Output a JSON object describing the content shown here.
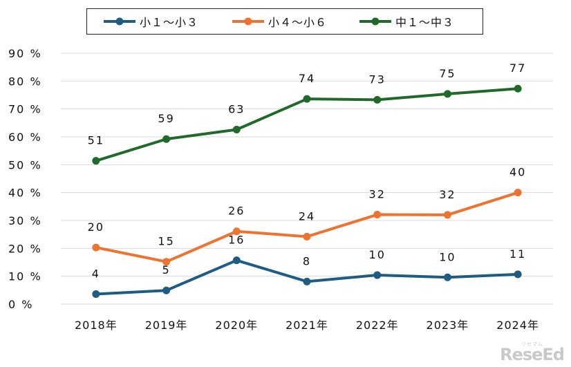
{
  "chart_data": {
    "type": "line",
    "categories": [
      "2018年",
      "2019年",
      "2020年",
      "2021年",
      "2022年",
      "2023年",
      "2024年"
    ],
    "series": [
      {
        "name": "小１～小３",
        "color": "#1f5c82",
        "values": [
          3.6,
          4.9,
          15.7,
          8.1,
          10.4,
          9.6,
          10.7
        ],
        "labels": [
          "4",
          "5",
          "16",
          "8",
          "10",
          "10",
          "11"
        ]
      },
      {
        "name": "小４～小６",
        "color": "#ec7430",
        "values": [
          20.3,
          15.2,
          26.1,
          24.2,
          32.1,
          32.0,
          40.0
        ],
        "labels": [
          "20",
          "15",
          "26",
          "24",
          "32",
          "32",
          "40"
        ]
      },
      {
        "name": "中１～中３",
        "color": "#21692a",
        "values": [
          51.4,
          59.2,
          62.6,
          73.6,
          73.3,
          75.4,
          77.3
        ],
        "labels": [
          "51",
          "59",
          "63",
          "74",
          "73",
          "75",
          "77"
        ]
      }
    ],
    "yticks": [
      "0 %",
      "10 %",
      "20 %",
      "30 %",
      "40 %",
      "50 %",
      "60 %",
      "70 %",
      "80 %",
      "90 %"
    ],
    "ylim": [
      0,
      90
    ],
    "grid": true,
    "legend": "top"
  },
  "watermark": {
    "text": "ReseEd",
    "sub": "リセマム"
  }
}
